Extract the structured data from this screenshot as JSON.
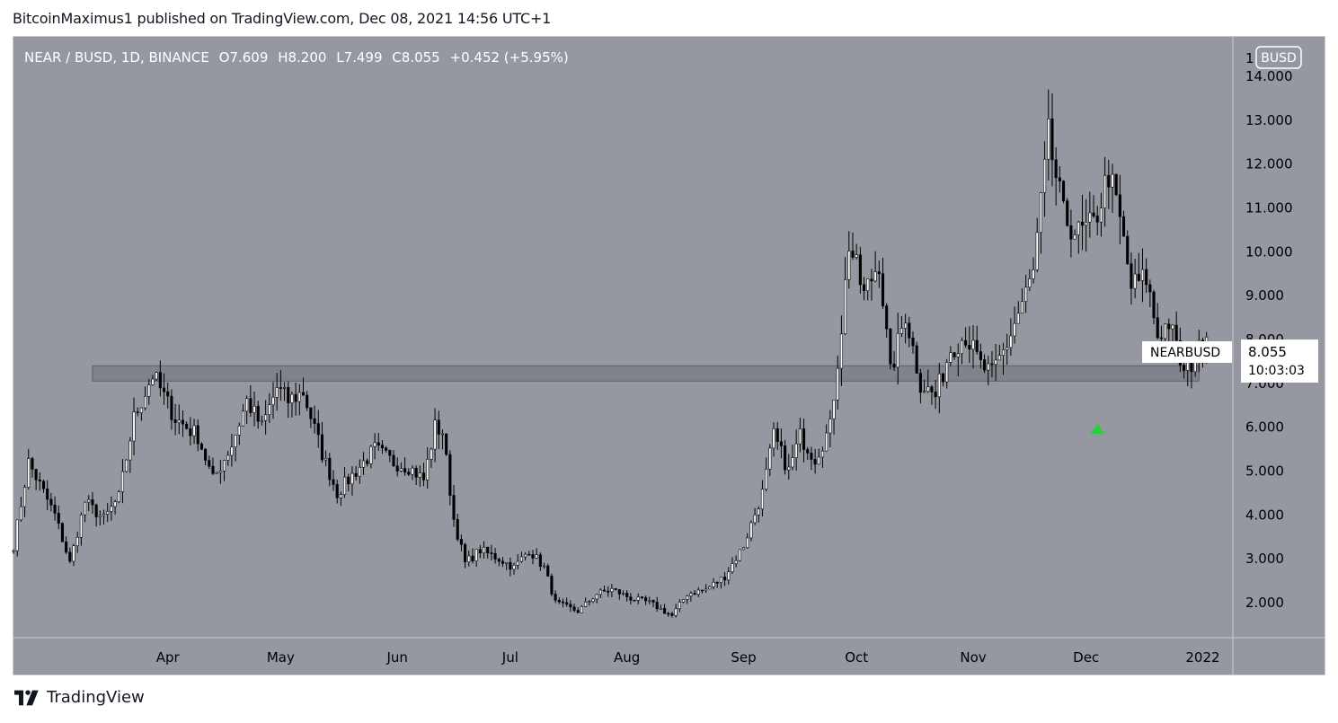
{
  "header": {
    "published_line": "BitcoinMaximus1 published on TradingView.com, Dec 08, 2021 14:56 UTC+1"
  },
  "footer": {
    "brand": "TradingView"
  },
  "colors": {
    "background": "#9598a1",
    "candle_body": "#000000",
    "candle_up_fill": "#ffffff",
    "wick": "#000000",
    "support_zone_fill": "#7a7c84",
    "axis_text": "#000000",
    "arrow": "#2ecc40",
    "label_bg": "#ffffff"
  },
  "chart_data": {
    "type": "candlestick",
    "symbol_line": {
      "pair": "NEAR / BUSD, 1D, BINANCE",
      "o_label": "O",
      "o_value": "7.609",
      "h_label": "H",
      "h_value": "8.200",
      "l_label": "L",
      "l_value": "7.499",
      "c_label": "C",
      "c_value": "8.055",
      "change": "+0.452 (+5.95%)"
    },
    "currency_badge": "BUSD",
    "axis_top_partial": "1",
    "y_ticks": [
      "14.000",
      "13.000",
      "12.000",
      "11.000",
      "10.000",
      "9.000",
      "8.000",
      "7.000",
      "6.000",
      "5.000",
      "4.000",
      "3.000",
      "2.000"
    ],
    "y_tick_values": [
      14,
      13,
      12,
      11,
      10,
      9,
      8,
      7,
      6,
      5,
      4,
      3,
      2
    ],
    "x_ticks": [
      "Apr",
      "May",
      "Jun",
      "Jul",
      "Aug",
      "Sep",
      "Oct",
      "Nov",
      "Dec",
      "2022"
    ],
    "x_tick_dates": [
      "2021-04-01",
      "2021-05-01",
      "2021-06-01",
      "2021-07-01",
      "2021-08-01",
      "2021-09-01",
      "2021-10-01",
      "2021-11-01",
      "2021-12-01",
      "2022-01-01"
    ],
    "ylim": [
      1.2,
      14.9
    ],
    "xlim": [
      "2021-02-19",
      "2022-01-09"
    ],
    "support_zone": {
      "low": 7.05,
      "high": 7.4,
      "from": "2021-03-12",
      "to": "2021-12-31"
    },
    "price_label": {
      "name": "NEARBUSD",
      "price": "8.055",
      "countdown": "10:03:03",
      "value": 8.055
    },
    "marker": {
      "type": "up-arrow",
      "date": "2021-12-04",
      "value": 5.95
    },
    "waypoints": [
      [
        "2021-02-19",
        3.3
      ],
      [
        "2021-02-23",
        5.2
      ],
      [
        "2021-03-02",
        4.0
      ],
      [
        "2021-03-06",
        2.9
      ],
      [
        "2021-03-10",
        4.3
      ],
      [
        "2021-03-15",
        3.9
      ],
      [
        "2021-03-19",
        4.4
      ],
      [
        "2021-03-23",
        6.2
      ],
      [
        "2021-03-28",
        7.2
      ],
      [
        "2021-04-03",
        6.2
      ],
      [
        "2021-04-09",
        5.8
      ],
      [
        "2021-04-13",
        4.8
      ],
      [
        "2021-04-18",
        5.6
      ],
      [
        "2021-04-22",
        6.6
      ],
      [
        "2021-04-26",
        6.0
      ],
      [
        "2021-04-30",
        6.9
      ],
      [
        "2021-05-03",
        6.6
      ],
      [
        "2021-05-07",
        6.8
      ],
      [
        "2021-05-12",
        5.4
      ],
      [
        "2021-05-16",
        4.5
      ],
      [
        "2021-05-21",
        5.0
      ],
      [
        "2021-05-26",
        5.5
      ],
      [
        "2021-05-31",
        5.2
      ],
      [
        "2021-06-04",
        5.1
      ],
      [
        "2021-06-08",
        4.8
      ],
      [
        "2021-06-11",
        6.0
      ],
      [
        "2021-06-13",
        5.9
      ],
      [
        "2021-06-16",
        3.9
      ],
      [
        "2021-06-19",
        2.9
      ],
      [
        "2021-06-23",
        3.2
      ],
      [
        "2021-06-28",
        3.0
      ],
      [
        "2021-07-02",
        2.8
      ],
      [
        "2021-07-06",
        3.2
      ],
      [
        "2021-07-10",
        2.8
      ],
      [
        "2021-07-13",
        2.0
      ],
      [
        "2021-07-19",
        1.8
      ],
      [
        "2021-07-24",
        2.2
      ],
      [
        "2021-07-28",
        2.3
      ],
      [
        "2021-08-02",
        2.1
      ],
      [
        "2021-08-07",
        2.0
      ],
      [
        "2021-08-13",
        1.7
      ],
      [
        "2021-08-17",
        2.2
      ],
      [
        "2021-08-22",
        2.3
      ],
      [
        "2021-08-27",
        2.6
      ],
      [
        "2021-09-01",
        3.3
      ],
      [
        "2021-09-06",
        4.5
      ],
      [
        "2021-09-09",
        5.8
      ],
      [
        "2021-09-13",
        5.0
      ],
      [
        "2021-09-16",
        5.8
      ],
      [
        "2021-09-20",
        5.3
      ],
      [
        "2021-09-24",
        6.0
      ],
      [
        "2021-09-27",
        8.3
      ],
      [
        "2021-09-29",
        10.2
      ],
      [
        "2021-10-03",
        9.0
      ],
      [
        "2021-10-07",
        9.8
      ],
      [
        "2021-10-10",
        7.2
      ],
      [
        "2021-10-14",
        8.6
      ],
      [
        "2021-10-18",
        7.0
      ],
      [
        "2021-10-22",
        6.7
      ],
      [
        "2021-10-26",
        7.8
      ],
      [
        "2021-10-30",
        8.1
      ],
      [
        "2021-11-03",
        7.4
      ],
      [
        "2021-11-06",
        7.2
      ],
      [
        "2021-11-10",
        7.9
      ],
      [
        "2021-11-13",
        8.6
      ],
      [
        "2021-11-17",
        9.5
      ],
      [
        "2021-11-21",
        12.6
      ],
      [
        "2021-11-25",
        10.8
      ],
      [
        "2021-11-29",
        10.4
      ],
      [
        "2021-12-03",
        10.6
      ],
      [
        "2021-12-07",
        11.8
      ],
      [
        "2021-12-10",
        10.7
      ],
      [
        "2021-12-13",
        9.2
      ],
      [
        "2021-12-17",
        9.4
      ],
      [
        "2021-12-20",
        8.1
      ],
      [
        "2021-12-23",
        8.4
      ],
      [
        "2021-12-27",
        7.2
      ],
      [
        "2021-12-30",
        7.6
      ],
      [
        "2022-01-02",
        8.055
      ]
    ]
  }
}
